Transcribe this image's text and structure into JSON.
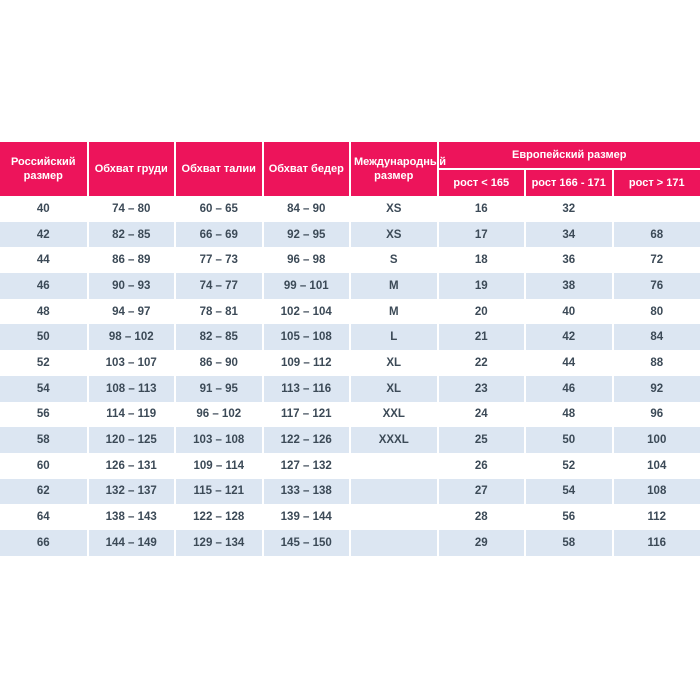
{
  "chart_data": {
    "type": "table",
    "title": "",
    "columns": [
      "Российский размер",
      "Обхват груди",
      "Обхват талии",
      "Обхват бедер",
      "Международный размер",
      "рост < 165",
      "рост 166 - 171",
      "рост > 171"
    ],
    "column_groups": [
      {
        "label": "Европейский размер",
        "span_columns": [
          5,
          6,
          7
        ]
      }
    ],
    "rows": [
      [
        "40",
        "74 – 80",
        "60 – 65",
        "84 – 90",
        "XS",
        "16",
        "32",
        ""
      ],
      [
        "42",
        "82 – 85",
        "66 – 69",
        "92 – 95",
        "XS",
        "17",
        "34",
        "68"
      ],
      [
        "44",
        "86 – 89",
        "77 – 73",
        "96 – 98",
        "S",
        "18",
        "36",
        "72"
      ],
      [
        "46",
        "90 – 93",
        "74 – 77",
        "99 – 101",
        "M",
        "19",
        "38",
        "76"
      ],
      [
        "48",
        "94 – 97",
        "78 – 81",
        "102 – 104",
        "M",
        "20",
        "40",
        "80"
      ],
      [
        "50",
        "98 – 102",
        "82 – 85",
        "105 – 108",
        "L",
        "21",
        "42",
        "84"
      ],
      [
        "52",
        "103 – 107",
        "86 – 90",
        "109 – 112",
        "XL",
        "22",
        "44",
        "88"
      ],
      [
        "54",
        "108 – 113",
        "91 – 95",
        "113 – 116",
        "XL",
        "23",
        "46",
        "92"
      ],
      [
        "56",
        "114 – 119",
        "96 – 102",
        "117 – 121",
        "XXL",
        "24",
        "48",
        "96"
      ],
      [
        "58",
        "120 – 125",
        "103 – 108",
        "122 – 126",
        "XXXL",
        "25",
        "50",
        "100"
      ],
      [
        "60",
        "126 – 131",
        "109 – 114",
        "127 – 132",
        "",
        "26",
        "52",
        "104"
      ],
      [
        "62",
        "132 – 137",
        "115 – 121",
        "133 – 138",
        "",
        "27",
        "54",
        "108"
      ],
      [
        "64",
        "138 – 143",
        "122 – 128",
        "139 – 144",
        "",
        "28",
        "56",
        "112"
      ],
      [
        "66",
        "144 – 149",
        "129 – 134",
        "145 – 150",
        "",
        "29",
        "58",
        "116"
      ]
    ],
    "layout": {
      "striped": true,
      "stripe_pattern": "odd rows white, even rows light blue",
      "header_rows": 2
    }
  },
  "colors": {
    "header_bg": "#ed145b",
    "header_text": "#ffffff",
    "row_alt_bg": "#dce6f2",
    "text_color": "#3c4a57",
    "separator": "#ffffff"
  }
}
